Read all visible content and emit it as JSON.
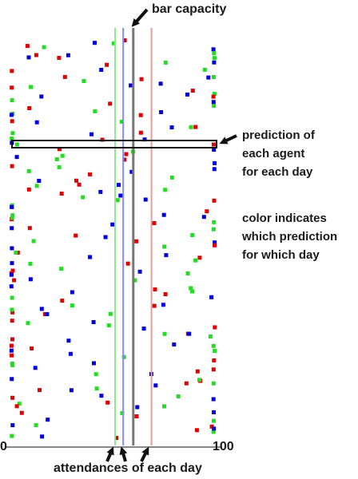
{
  "labels": {
    "bar_capacity": "bar capacity",
    "prediction_lines": [
      "prediction of",
      "each agent",
      "for each day"
    ],
    "color_lines": [
      "color indicates",
      "which prediction",
      "for which day"
    ],
    "attendances": "attendances of each day",
    "axis_min": "0",
    "axis_max": "100"
  },
  "colors": {
    "red": "#e00000",
    "green": "#22dd22",
    "blue": "#0000dd",
    "capacity_line": "#777777",
    "green_day_line": "#88ee88",
    "blue_day_line": "#8888ff",
    "red_day_line": "#ee9999",
    "axis": "#888888"
  },
  "chart_data": {
    "type": "scatter",
    "x_range": [
      0,
      100
    ],
    "capacity": 60,
    "attendance_lines": [
      {
        "color": "green",
        "value": 51
      },
      {
        "color": "blue",
        "value": 55
      },
      {
        "color": "red",
        "value": 69
      }
    ],
    "agent_rows": 70,
    "dot_seed": 7
  }
}
